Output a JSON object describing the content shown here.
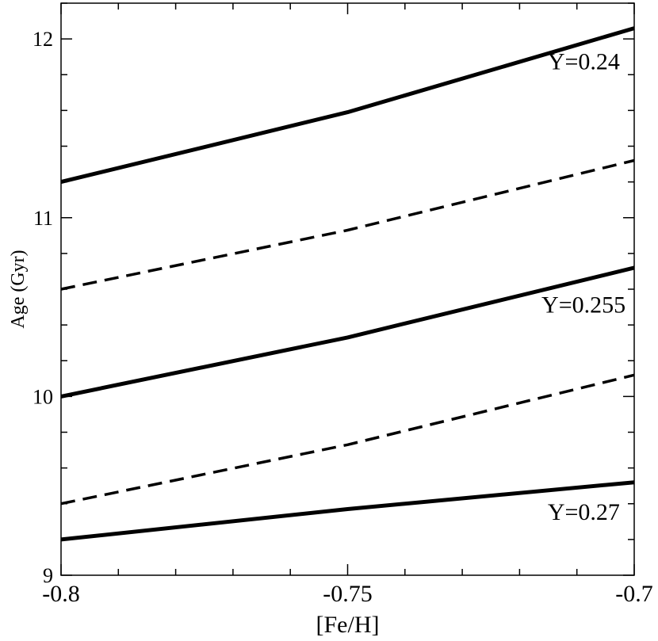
{
  "chart_data": {
    "type": "line",
    "title": "",
    "xlabel": "[Fe/H]",
    "ylabel": "Age (Gyr)",
    "xlim": [
      -0.8,
      -0.7
    ],
    "ylim": [
      9,
      12.2
    ],
    "x_ticks": [
      -0.8,
      -0.75,
      -0.7
    ],
    "x_tick_labels": [
      "-0.8",
      "-0.75",
      "-0.7"
    ],
    "y_ticks": [
      9,
      10,
      11,
      12
    ],
    "y_tick_labels": [
      "9",
      "10",
      "11",
      "12"
    ],
    "grid": false,
    "legend": "none",
    "series": [
      {
        "name": "Y=0.24",
        "style": "solid",
        "color": "#000000",
        "x": [
          -0.8,
          -0.75,
          -0.7
        ],
        "y": [
          11.2,
          11.59,
          12.06
        ]
      },
      {
        "style": "dashed",
        "color": "#000000",
        "x": [
          -0.8,
          -0.75,
          -0.7
        ],
        "y": [
          10.6,
          10.93,
          11.32
        ]
      },
      {
        "name": "Y=0.255",
        "style": "solid",
        "color": "#000000",
        "x": [
          -0.8,
          -0.75,
          -0.7
        ],
        "y": [
          10.0,
          10.33,
          10.72
        ]
      },
      {
        "style": "dashed",
        "color": "#000000",
        "x": [
          -0.8,
          -0.75,
          -0.7
        ],
        "y": [
          9.4,
          9.73,
          10.12
        ]
      },
      {
        "name": "Y=0.27",
        "style": "solid",
        "color": "#000000",
        "x": [
          -0.8,
          -0.75,
          -0.7
        ],
        "y": [
          9.2,
          9.37,
          9.52
        ]
      }
    ],
    "annotations": [
      {
        "text": "Y=0.24",
        "x": -0.7025,
        "y": 11.83,
        "anchor": "end"
      },
      {
        "text": "Y=0.255",
        "x": -0.7015,
        "y": 10.47,
        "anchor": "end"
      },
      {
        "text": "Y=0.27",
        "x": -0.7025,
        "y": 9.31,
        "anchor": "end"
      }
    ]
  }
}
